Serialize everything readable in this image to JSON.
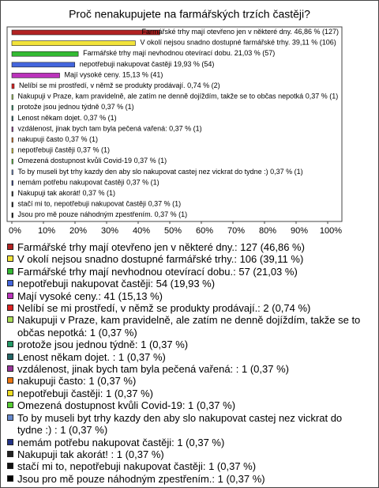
{
  "chart_data": {
    "type": "bar",
    "orientation": "horizontal",
    "title": "Proč nenakupujete na farmářských trzích častěji?",
    "categories": [
      "Farmářské trhy mají otevřeno jen v některé dny.",
      "V okolí nejsou snadno dostupné farmářské trhy.",
      "Farmářské trhy mají nevhodnou otevírací dobu.",
      "nepotřebuji nakupovat častěji",
      "Mají vysoké ceny.",
      "Nelíbí se mi prostředí, v němž se produkty prodávají.",
      "Nakupuji v Praze, kam pravidelně, ale zatím ne denně dojíždím, takže se to občas nepotká",
      "protože jsou jednou týdně",
      "Lenost někam dojet.",
      "vzdálenost, jinak bych tam byla pečená vařená:",
      "nakupuji často",
      "nepotřebuji častěji",
      "Omezená dostupnost kvůli Covid-19",
      "To by museli byt trhy kazdy den aby slo nakupovat castej nez vickrat do tydne :)",
      "nemám potřebu nakupovat častěji",
      "Nakupuji tak akorát!",
      "stačí mi to, nepotřebuji nakupovat častěji",
      "Jsou pro mě pouze náhodným zpestřením."
    ],
    "values": [
      46.86,
      39.11,
      21.03,
      19.93,
      15.13,
      0.74,
      0.37,
      0.37,
      0.37,
      0.37,
      0.37,
      0.37,
      0.37,
      0.37,
      0.37,
      0.37,
      0.37,
      0.37
    ],
    "value_labels": [
      "46,86 % (127)",
      "39,11 % (106)",
      "21,03 % (57)",
      "19,93 % (54)",
      "15,13 % (41)",
      "0,74 % (2)",
      "0,37 % (1)",
      "0,37 % (1)",
      "0,37 % (1)",
      "0,37 % (1)",
      "0,37 % (1)",
      "0,37 % (1)",
      "0,37 % (1)",
      "0,37 % (1)",
      "0,37 % (1)",
      "0,37 % (1)",
      "0,37 % (1)",
      "0,37 % (1)"
    ],
    "legend_labels": [
      "Farmářské trhy mají otevřeno jen v některé dny.: 127 (46,86 %)",
      "V okolí nejsou snadno dostupné farmářské trhy.: 106 (39,11 %)",
      "Farmářské trhy mají nevhodnou otevírací dobu.: 57 (21,03 %)",
      "nepotřebuji nakupovat častěji: 54 (19,93 %)",
      "Mají vysoké ceny.: 41 (15,13 %)",
      "Nelíbí se mi prostředí, v němž se produkty prodávají.: 2 (0,74 %)",
      "Nakupuji v Praze, kam pravidelně, ale zatím ne denně dojíždím, takže se to občas nepotká: 1 (0,37 %)",
      "protože jsou jednou týdně: 1 (0,37 %)",
      "Lenost někam dojet. : 1 (0,37 %)",
      "vzdálenost, jinak bych tam byla pečená vařená: : 1 (0,37 %)",
      "nakupuji často: 1 (0,37 %)",
      "nepotřebuji častěji: 1 (0,37 %)",
      "Omezená dostupnost kvůli Covid-19: 1 (0,37 %)",
      "To by museli byt trhy kazdy den aby slo nakupovat castej nez vickrat do tydne :) : 1 (0,37 %)",
      "nemám potřebu nakupovat častěji: 1 (0,37 %)",
      "Nakupuji tak akorát! : 1 (0,37 %)",
      "stačí mi to, nepotřebuji nakupovat častěji: 1 (0,37 %)",
      "Jsou pro mě pouze náhodným zpestřením.: 1 (0,37 %)"
    ],
    "colors": [
      "#b22222",
      "#f2e33a",
      "#33bb33",
      "#4466dd",
      "#bb33bb",
      "#dd2222",
      "#aadd55",
      "#229966",
      "#226666",
      "#993399",
      "#ee7711",
      "#eedd22",
      "#55cc33",
      "#6688cc",
      "#223388",
      "#222222",
      "#111111",
      "#000000"
    ],
    "xlim": [
      0,
      100
    ],
    "xticks": [
      {
        "value": 0,
        "label": "0%"
      },
      {
        "value": 10,
        "label": "10%"
      },
      {
        "value": 20,
        "label": "20%"
      },
      {
        "value": 30,
        "label": "30%"
      },
      {
        "value": 40,
        "label": "40%"
      },
      {
        "value": 50,
        "label": "50%"
      },
      {
        "value": 60,
        "label": "60%"
      },
      {
        "value": 70,
        "label": "70%"
      },
      {
        "value": 80,
        "label": "80%"
      },
      {
        "value": 90,
        "label": "90%"
      },
      {
        "value": 100,
        "label": "100%"
      }
    ]
  }
}
